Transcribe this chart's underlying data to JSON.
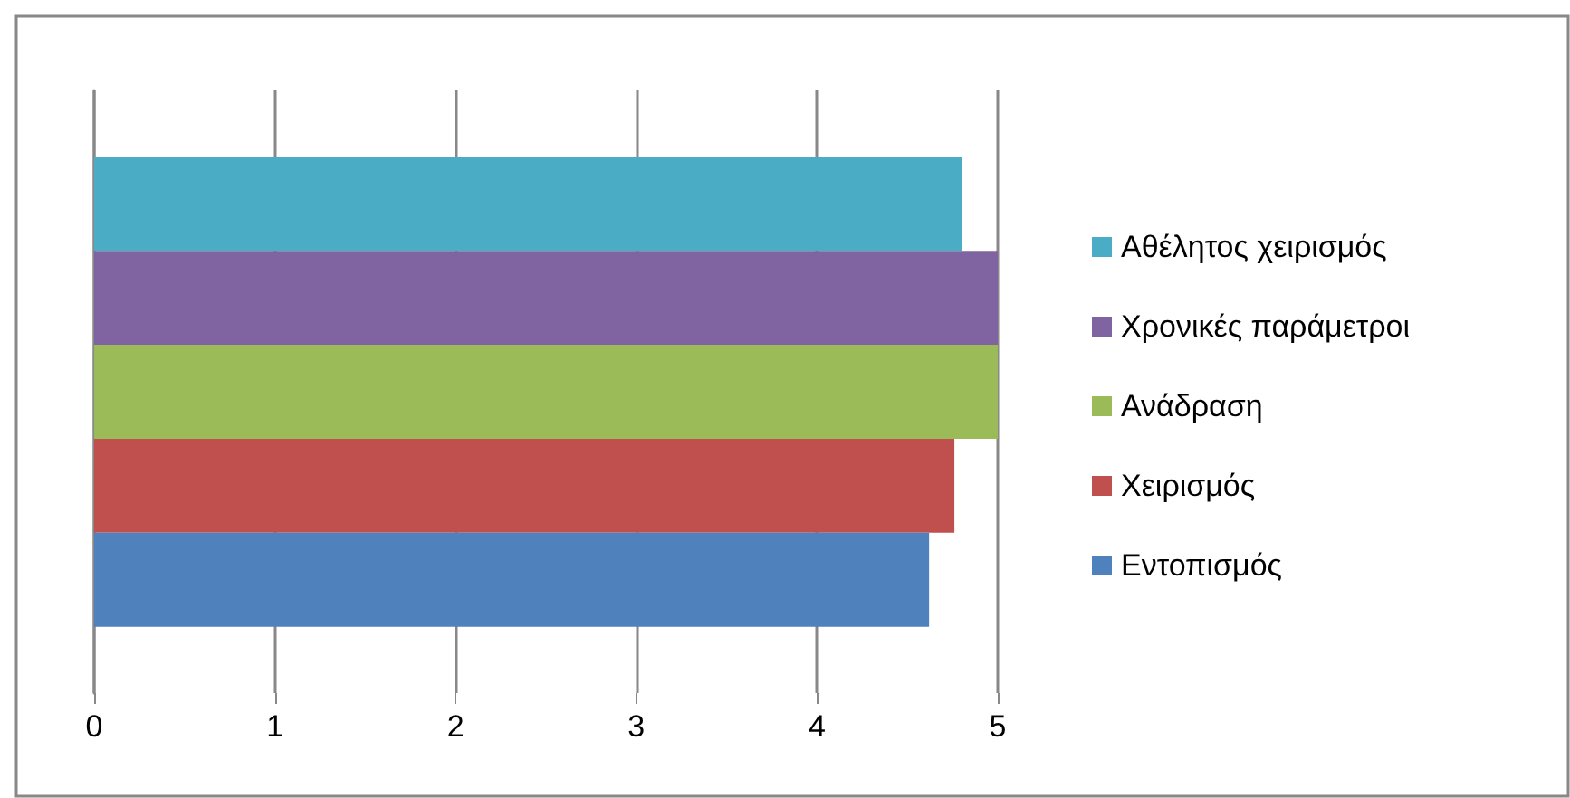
{
  "chart_data": {
    "type": "bar",
    "orientation": "horizontal",
    "categories": [
      null
    ],
    "series": [
      {
        "name": "Εντοπισμός",
        "color": "#4f81bd",
        "values": [
          4.62
        ]
      },
      {
        "name": "Χειρισμός",
        "color": "#c0504d",
        "values": [
          4.76
        ]
      },
      {
        "name": "Ανάδραση",
        "color": "#9bbb59",
        "values": [
          5
        ]
      },
      {
        "name": "Χρονικές παράμετροι",
        "color": "#8064a2",
        "values": [
          5
        ]
      },
      {
        "name": "Αθέλητος χειρισμός",
        "color": "#4bacc6",
        "values": [
          4.8
        ]
      }
    ],
    "xlim": [
      0,
      5
    ],
    "xticks": [
      0,
      1,
      2,
      3,
      4,
      5
    ],
    "grid": "x",
    "legend": "right"
  }
}
